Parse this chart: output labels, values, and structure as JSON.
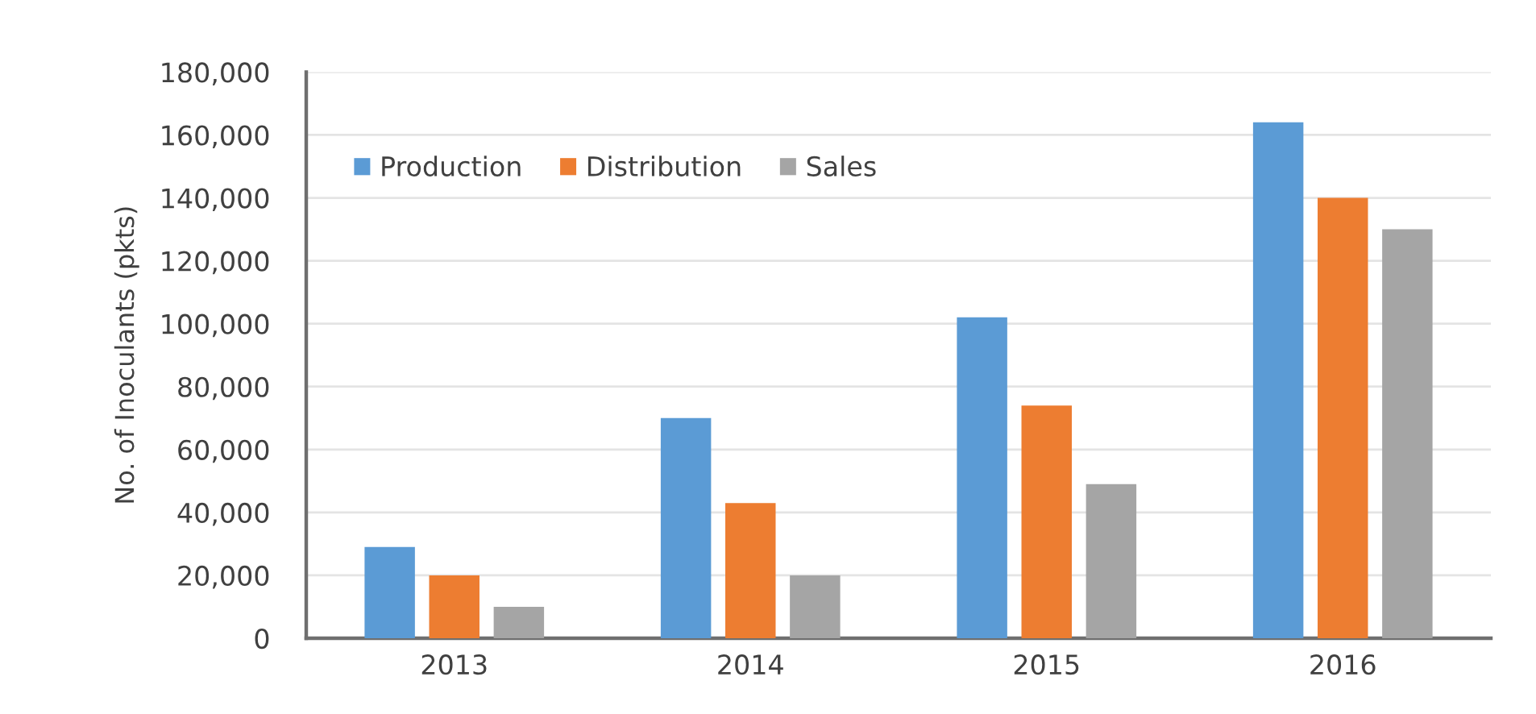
{
  "chart_data": {
    "type": "bar",
    "ylabel": "No. of Inoculants (pkts)",
    "categories": [
      "2013",
      "2014",
      "2015",
      "2016"
    ],
    "series": [
      {
        "name": "Production",
        "color": "#5b9bd5",
        "values": [
          29000,
          70000,
          102000,
          164000
        ]
      },
      {
        "name": "Distribution",
        "color": "#ed7d31",
        "values": [
          20000,
          43000,
          74000,
          140000
        ]
      },
      {
        "name": "Sales",
        "color": "#a5a5a5",
        "values": [
          10000,
          20000,
          49000,
          130000
        ]
      }
    ],
    "ylim": [
      0,
      180000
    ],
    "yticks": [
      {
        "value": 0,
        "label": "0"
      },
      {
        "value": 20000,
        "label": "20,000"
      },
      {
        "value": 40000,
        "label": "40,000"
      },
      {
        "value": 60000,
        "label": "60,000"
      },
      {
        "value": 80000,
        "label": "80,000"
      },
      {
        "value": 100000,
        "label": "100,000"
      },
      {
        "value": 120000,
        "label": "120,000"
      },
      {
        "value": 140000,
        "label": "140,000"
      },
      {
        "value": 160000,
        "label": "160,000"
      },
      {
        "value": 180000,
        "label": "180,000"
      }
    ],
    "grid": "y",
    "legend": "top left"
  }
}
